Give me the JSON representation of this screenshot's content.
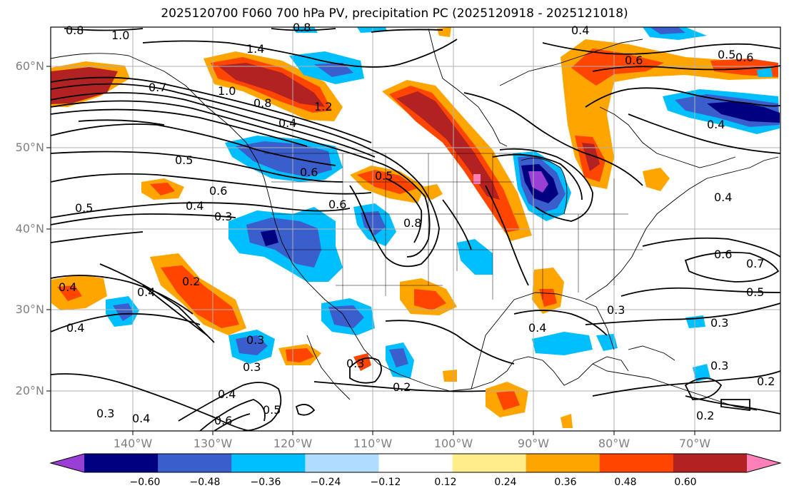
{
  "title": "2025120700 F060 700 hPa PV, precipitation PC (2025120918 - 2025121018)",
  "lat_labels": [
    "60°N",
    "50°N",
    "40°N",
    "30°N",
    "20°N"
  ],
  "lon_labels": [
    "140°W",
    "130°W",
    "120°W",
    "110°W",
    "100°W",
    "90°W",
    "80°W",
    "70°W"
  ],
  "contour_labels": [
    "0.8",
    "1.0",
    "0.8",
    "1.4",
    "0.4",
    "0.6",
    "0.6",
    "0.5",
    "0.7",
    "1.0",
    "0.8",
    "1.2",
    "0.4",
    "0.4",
    "0.5",
    "0.6",
    "0.5",
    "0.4",
    "0.3",
    "0.5",
    "0.6",
    "0.6",
    "0.8",
    "0.4",
    "0.4",
    "0.4",
    "0.2",
    "0.4",
    "0.3",
    "0.3",
    "0.2",
    "0.4",
    "0.3",
    "0.3",
    "0.6",
    "0.7",
    "0.5",
    "0.3",
    "0.3",
    "0.2",
    "0.2",
    "0.4",
    "0.3",
    "0.6",
    "0.5",
    "0.4"
  ],
  "colorbar": {
    "ticks": [
      "−0.60",
      "−0.48",
      "−0.36",
      "−0.24",
      "−0.12",
      "0.12",
      "0.24",
      "0.36",
      "0.48",
      "0.60"
    ],
    "colors": [
      "#9a3fd6",
      "#000080",
      "#3a5fcd",
      "#00bfff",
      "#afdcff",
      "#ffffff",
      "#ffec8b",
      "#ffa500",
      "#ff4500",
      "#b22222",
      "#ff7fb8"
    ]
  },
  "colors": {
    "grid": "#b0b0b0",
    "contour": "#000000"
  }
}
